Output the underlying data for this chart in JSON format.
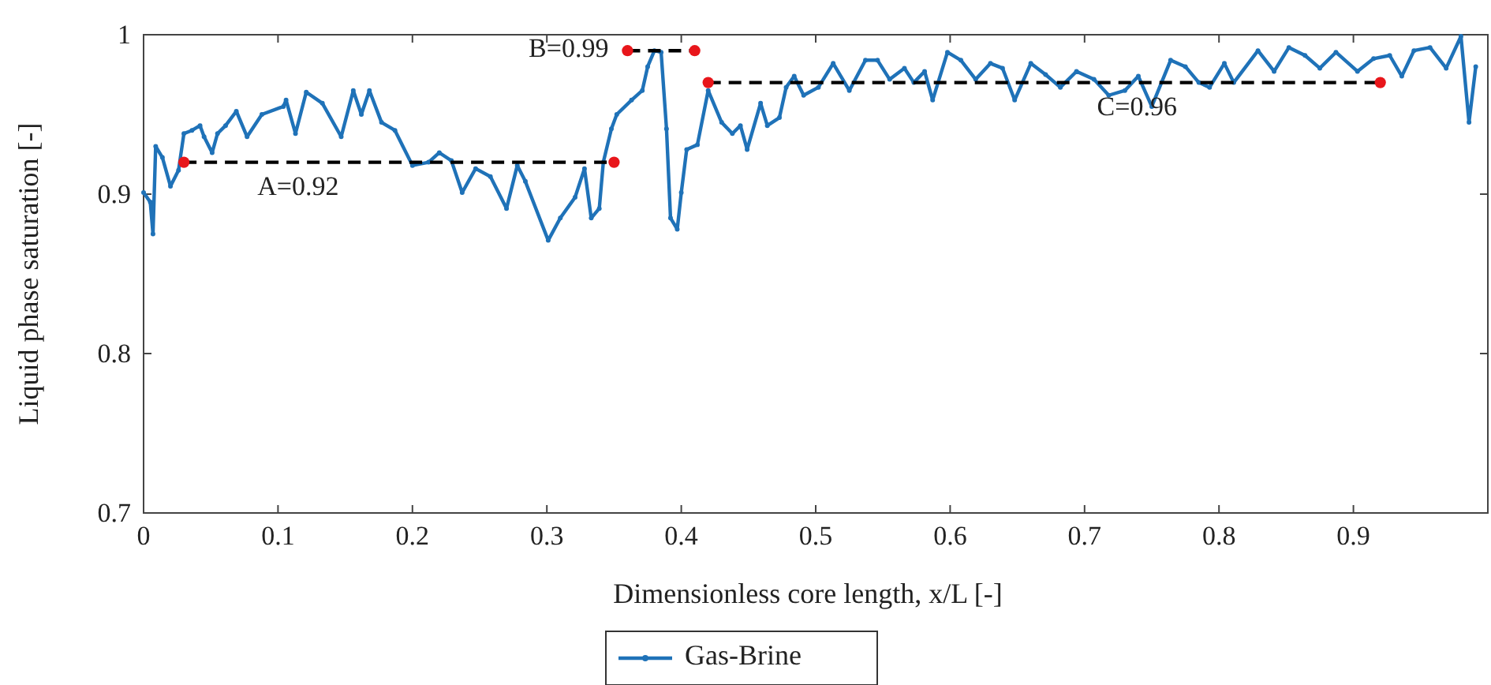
{
  "chart_data": {
    "type": "line",
    "xlabel": "Dimensionless core length, x/L [-]",
    "ylabel": "Liquid phase saturation [-]",
    "xlim": [
      0,
      1
    ],
    "xticks": [
      0,
      0.1,
      0.2,
      0.3,
      0.4,
      0.5,
      0.6,
      0.7,
      0.8,
      0.9
    ],
    "ylim": [
      0.7,
      1
    ],
    "yticks": [
      0.7,
      0.8,
      0.9,
      1
    ],
    "grid": false,
    "legend": "bottom",
    "series": [
      {
        "name": "Gas-Brine",
        "color": "#1f72b8",
        "line_style": "solid",
        "marker": "circle",
        "x": [
          0,
          0.005,
          0.007,
          0.009,
          0.014,
          0.02,
          0.026,
          0.03,
          0.036,
          0.042,
          0.045,
          0.051,
          0.055,
          0.061,
          0.069,
          0.077,
          0.088,
          0.104,
          0.106,
          0.113,
          0.121,
          0.133,
          0.147,
          0.156,
          0.162,
          0.168,
          0.177,
          0.187,
          0.2,
          0.212,
          0.22,
          0.229,
          0.237,
          0.247,
          0.258,
          0.27,
          0.278,
          0.284,
          0.301,
          0.31,
          0.321,
          0.328,
          0.333,
          0.339,
          0.342,
          0.348,
          0.352,
          0.363,
          0.371,
          0.375,
          0.38,
          0.385,
          0.389,
          0.392,
          0.397,
          0.4,
          0.404,
          0.412,
          0.42,
          0.43,
          0.438,
          0.444,
          0.449,
          0.459,
          0.464,
          0.473,
          0.478,
          0.484,
          0.491,
          0.502,
          0.513,
          0.525,
          0.537,
          0.546,
          0.555,
          0.566,
          0.573,
          0.581,
          0.587,
          0.598,
          0.608,
          0.619,
          0.63,
          0.639,
          0.648,
          0.66,
          0.671,
          0.682,
          0.694,
          0.707,
          0.718,
          0.73,
          0.74,
          0.75,
          0.764,
          0.775,
          0.785,
          0.793,
          0.804,
          0.811,
          0.829,
          0.841,
          0.852,
          0.864,
          0.875,
          0.887,
          0.903,
          0.915,
          0.927,
          0.936,
          0.945,
          0.957,
          0.969,
          0.98,
          0.986,
          0.991
        ],
        "values": [
          0.901,
          0.895,
          0.875,
          0.93,
          0.923,
          0.905,
          0.915,
          0.938,
          0.94,
          0.943,
          0.936,
          0.926,
          0.938,
          0.943,
          0.952,
          0.936,
          0.95,
          0.955,
          0.959,
          0.938,
          0.964,
          0.957,
          0.936,
          0.965,
          0.95,
          0.965,
          0.945,
          0.94,
          0.918,
          0.92,
          0.926,
          0.921,
          0.901,
          0.916,
          0.911,
          0.891,
          0.918,
          0.908,
          0.871,
          0.885,
          0.898,
          0.916,
          0.885,
          0.891,
          0.92,
          0.941,
          0.95,
          0.959,
          0.965,
          0.98,
          0.99,
          0.989,
          0.941,
          0.885,
          0.878,
          0.901,
          0.928,
          0.931,
          0.965,
          0.945,
          0.938,
          0.943,
          0.928,
          0.957,
          0.943,
          0.948,
          0.967,
          0.974,
          0.962,
          0.967,
          0.982,
          0.965,
          0.984,
          0.984,
          0.972,
          0.979,
          0.97,
          0.977,
          0.959,
          0.989,
          0.984,
          0.972,
          0.982,
          0.979,
          0.959,
          0.982,
          0.975,
          0.967,
          0.977,
          0.972,
          0.962,
          0.965,
          0.974,
          0.955,
          0.984,
          0.98,
          0.97,
          0.967,
          0.982,
          0.97,
          0.99,
          0.977,
          0.992,
          0.987,
          0.979,
          0.989,
          0.977,
          0.985,
          0.987,
          0.974,
          0.99,
          0.992,
          0.979,
          0.999,
          0.945,
          0.98
        ]
      },
      {
        "type": "line",
        "color": "#000000",
        "line_style": "dashed",
        "marker": "none",
        "x": [
          0.03,
          0.35
        ],
        "values": [
          0.92,
          0.92
        ]
      },
      {
        "type": "line",
        "color": "#000000",
        "line_style": "dashed",
        "marker": "none",
        "x": [
          0.36,
          0.41
        ],
        "values": [
          0.99,
          0.99
        ]
      },
      {
        "type": "line",
        "color": "#000000",
        "line_style": "dashed",
        "marker": "none",
        "x": [
          0.42,
          0.92
        ],
        "values": [
          0.97,
          0.97
        ]
      },
      {
        "type": "scatter",
        "color": "#e8161b",
        "marker": "circle",
        "x": [
          0.03,
          0.35,
          0.36,
          0.41,
          0.42,
          0.92
        ],
        "values": [
          0.92,
          0.92,
          0.99,
          0.99,
          0.97,
          0.97
        ]
      }
    ],
    "annotations": [
      {
        "text": "A=0.92",
        "x": 0.115,
        "y": 0.92
      },
      {
        "text": "B=0.99",
        "x": 0.36,
        "y": 0.99
      },
      {
        "text": "C=0.96",
        "x": 0.739,
        "y": 0.97
      }
    ]
  }
}
